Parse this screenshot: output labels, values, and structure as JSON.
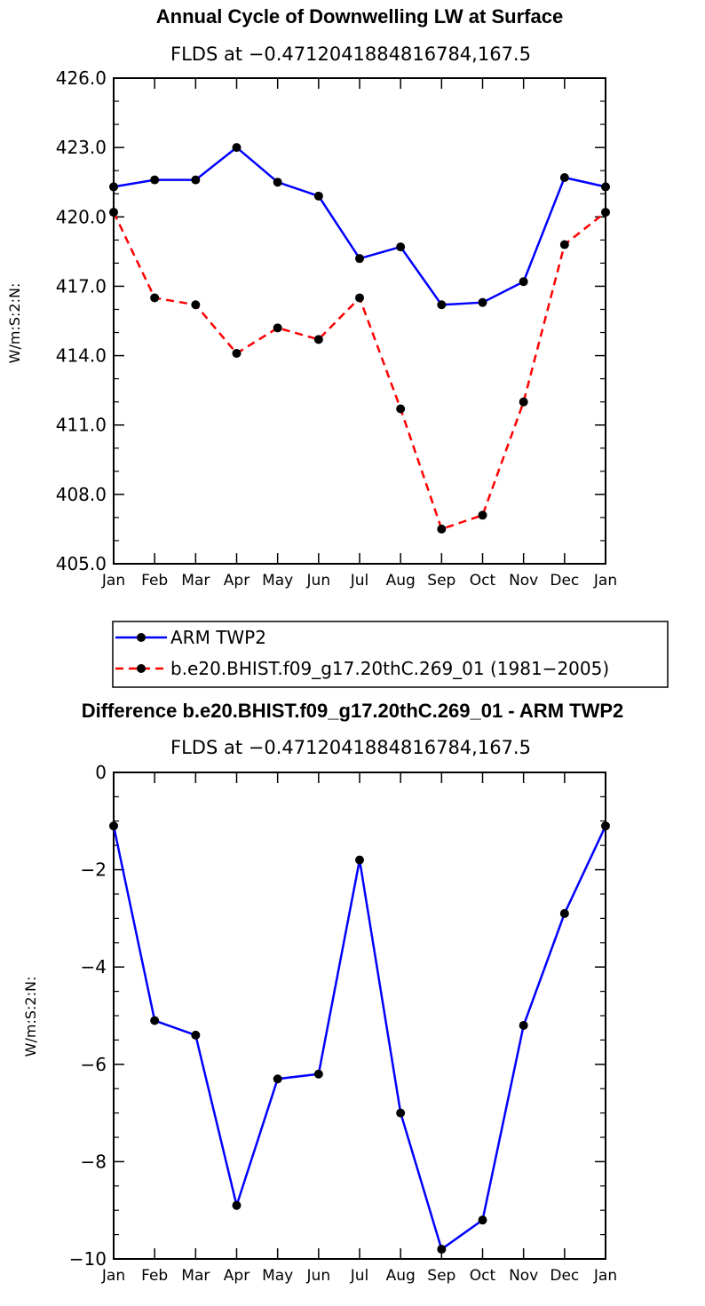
{
  "chart_data": [
    {
      "type": "line",
      "title": "Annual Cycle of Downwelling LW at Surface",
      "subtitle": "FLDS at −0.4712041884816784,167.5",
      "xlabel": "",
      "ylabel": "W/m:S:2:N:",
      "categories": [
        "Jan",
        "Feb",
        "Mar",
        "Apr",
        "May",
        "Jun",
        "Jul",
        "Aug",
        "Sep",
        "Oct",
        "Nov",
        "Dec",
        "Jan"
      ],
      "ylim": [
        405.0,
        426.0
      ],
      "yticks": [
        "405.0",
        "408.0",
        "411.0",
        "414.0",
        "417.0",
        "420.0",
        "423.0",
        "426.0"
      ],
      "series": [
        {
          "name": "ARM TWP2",
          "color": "#0000ff",
          "dash": "solid",
          "values": [
            421.3,
            421.6,
            421.6,
            423.0,
            421.5,
            420.9,
            418.2,
            418.7,
            416.2,
            416.3,
            417.2,
            421.7,
            421.3
          ]
        },
        {
          "name": "b.e20.BHIST.f09_g17.20thC.269_01 (1981−2005)",
          "color": "#ff0000",
          "dash": "dashed",
          "values": [
            420.2,
            416.5,
            416.2,
            414.1,
            415.2,
            414.7,
            416.5,
            411.7,
            406.5,
            407.1,
            412.0,
            418.8,
            420.2
          ]
        }
      ],
      "legend": [
        {
          "label": "ARM TWP2",
          "color": "#0000ff",
          "dash": "solid"
        },
        {
          "label": "b.e20.BHIST.f09_g17.20thC.269_01 (1981−2005)",
          "color": "#ff0000",
          "dash": "dashed"
        }
      ]
    },
    {
      "type": "line",
      "title": "Difference b.e20.BHIST.f09_g17.20thC.269_01 - ARM TWP2",
      "subtitle": "FLDS at −0.4712041884816784,167.5",
      "xlabel": "",
      "ylabel": "W/m:S:2:N:",
      "categories": [
        "Jan",
        "Feb",
        "Mar",
        "Apr",
        "May",
        "Jun",
        "Jul",
        "Aug",
        "Sep",
        "Oct",
        "Nov",
        "Dec",
        "Jan"
      ],
      "ylim": [
        -10,
        0
      ],
      "yticks": [
        "−10",
        "−8",
        "−6",
        "−4",
        "−2",
        "0"
      ],
      "series": [
        {
          "name": "Difference",
          "color": "#0000ff",
          "dash": "solid",
          "values": [
            -1.1,
            -5.1,
            -5.4,
            -8.9,
            -6.3,
            -6.2,
            -1.8,
            -7.0,
            -9.8,
            -9.2,
            -5.2,
            -2.9,
            -1.1
          ]
        }
      ]
    }
  ]
}
